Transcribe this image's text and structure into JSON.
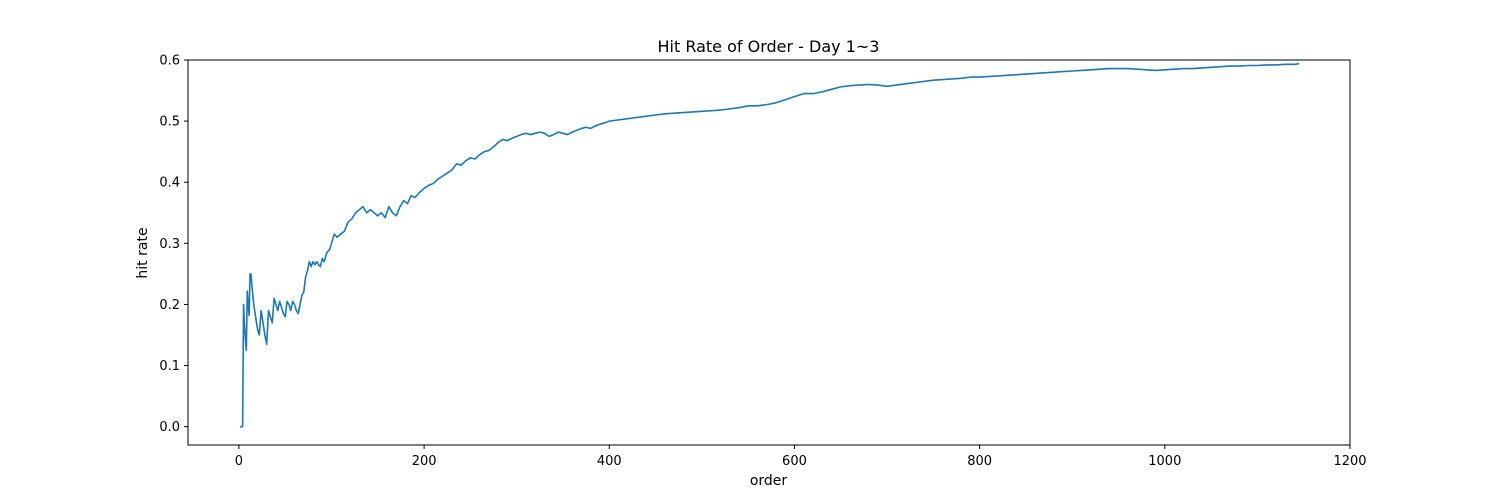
{
  "chart_data": {
    "type": "line",
    "title": "Hit Rate of Order - Day 1~3",
    "xlabel": "order",
    "ylabel": "hit rate",
    "xlim": [
      -55,
      1200
    ],
    "ylim": [
      -0.03,
      0.6
    ],
    "xticks": [
      0,
      200,
      400,
      600,
      800,
      1000,
      1200
    ],
    "yticks": [
      0.0,
      0.1,
      0.2,
      0.3,
      0.4,
      0.5,
      0.6
    ],
    "xtick_labels": [
      "0",
      "200",
      "400",
      "600",
      "800",
      "1000",
      "1200"
    ],
    "ytick_labels": [
      "0.0",
      "0.1",
      "0.2",
      "0.3",
      "0.4",
      "0.5",
      "0.6"
    ],
    "grid": false,
    "line_color": "#1f77b4",
    "series": [
      {
        "x": [
          1,
          3,
          4,
          5,
          6,
          7,
          8,
          9,
          10,
          11,
          12,
          13,
          14,
          16,
          18,
          20,
          22,
          24,
          26,
          28,
          30,
          32,
          34,
          36,
          38,
          40,
          42,
          44,
          46,
          48,
          50,
          52,
          54,
          56,
          58,
          60,
          62,
          64,
          66,
          68,
          70,
          72,
          74,
          76,
          78,
          80,
          82,
          84,
          86,
          88,
          90,
          92,
          95,
          98,
          100,
          103,
          106,
          110,
          114,
          118,
          122,
          126,
          130,
          134,
          138,
          142,
          146,
          150,
          154,
          158,
          162,
          166,
          170,
          174,
          178,
          182,
          186,
          190,
          195,
          200,
          205,
          210,
          215,
          220,
          225,
          230,
          235,
          240,
          245,
          250,
          255,
          260,
          265,
          270,
          275,
          280,
          285,
          290,
          295,
          300,
          305,
          310,
          315,
          320,
          325,
          330,
          335,
          340,
          345,
          350,
          355,
          360,
          365,
          370,
          375,
          380,
          385,
          390,
          395,
          400,
          410,
          420,
          430,
          440,
          450,
          460,
          470,
          480,
          490,
          500,
          510,
          520,
          530,
          540,
          550,
          560,
          570,
          580,
          590,
          600,
          610,
          620,
          630,
          640,
          650,
          660,
          670,
          680,
          690,
          700,
          710,
          720,
          730,
          740,
          750,
          760,
          770,
          780,
          790,
          800,
          810,
          820,
          830,
          840,
          850,
          860,
          870,
          880,
          890,
          900,
          910,
          920,
          930,
          940,
          950,
          960,
          970,
          980,
          990,
          1000,
          1010,
          1020,
          1030,
          1040,
          1050,
          1060,
          1070,
          1080,
          1090,
          1100,
          1110,
          1120,
          1130,
          1140,
          1145
        ],
        "y": [
          0.0,
          0.0,
          0.0,
          0.2,
          0.167,
          0.143,
          0.125,
          0.222,
          0.2,
          0.182,
          0.25,
          0.25,
          0.231,
          0.2,
          0.18,
          0.16,
          0.15,
          0.19,
          0.17,
          0.15,
          0.135,
          0.19,
          0.18,
          0.17,
          0.21,
          0.2,
          0.19,
          0.205,
          0.195,
          0.185,
          0.18,
          0.205,
          0.2,
          0.19,
          0.205,
          0.2,
          0.19,
          0.185,
          0.2,
          0.215,
          0.22,
          0.245,
          0.255,
          0.27,
          0.262,
          0.27,
          0.265,
          0.27,
          0.265,
          0.262,
          0.275,
          0.27,
          0.285,
          0.29,
          0.3,
          0.315,
          0.31,
          0.315,
          0.32,
          0.335,
          0.34,
          0.35,
          0.355,
          0.36,
          0.35,
          0.355,
          0.35,
          0.345,
          0.35,
          0.342,
          0.36,
          0.35,
          0.345,
          0.36,
          0.37,
          0.365,
          0.378,
          0.375,
          0.383,
          0.39,
          0.395,
          0.398,
          0.405,
          0.41,
          0.415,
          0.42,
          0.43,
          0.428,
          0.435,
          0.44,
          0.438,
          0.445,
          0.45,
          0.452,
          0.458,
          0.465,
          0.47,
          0.468,
          0.472,
          0.475,
          0.478,
          0.48,
          0.478,
          0.48,
          0.482,
          0.48,
          0.475,
          0.478,
          0.482,
          0.48,
          0.478,
          0.482,
          0.485,
          0.488,
          0.49,
          0.488,
          0.492,
          0.495,
          0.497,
          0.5,
          0.502,
          0.504,
          0.506,
          0.508,
          0.51,
          0.512,
          0.513,
          0.514,
          0.515,
          0.516,
          0.517,
          0.518,
          0.52,
          0.522,
          0.525,
          0.525,
          0.527,
          0.53,
          0.535,
          0.54,
          0.545,
          0.545,
          0.548,
          0.552,
          0.556,
          0.558,
          0.559,
          0.56,
          0.559,
          0.557,
          0.559,
          0.561,
          0.563,
          0.565,
          0.567,
          0.568,
          0.569,
          0.57,
          0.572,
          0.572,
          0.573,
          0.574,
          0.575,
          0.576,
          0.577,
          0.578,
          0.579,
          0.58,
          0.581,
          0.582,
          0.583,
          0.584,
          0.585,
          0.586,
          0.586,
          0.586,
          0.585,
          0.584,
          0.583,
          0.584,
          0.585,
          0.586,
          0.586,
          0.587,
          0.588,
          0.589,
          0.59,
          0.59,
          0.591,
          0.591,
          0.592,
          0.592,
          0.593,
          0.593,
          0.594
        ]
      }
    ]
  }
}
